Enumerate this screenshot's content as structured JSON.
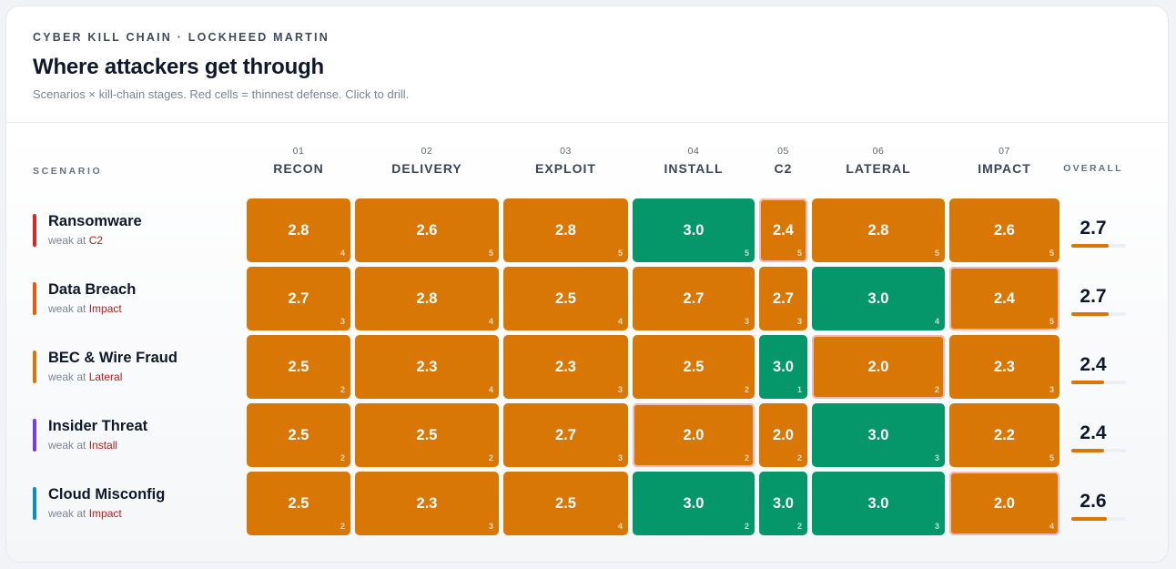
{
  "header": {
    "eyebrow": "CYBER KILL CHAIN · LOCKHEED MARTIN",
    "title": "Where attackers get through",
    "subtitle": "Scenarios × kill-chain stages. Red cells = thinnest defense. Click to drill."
  },
  "labels": {
    "scenario_head": "SCENARIO",
    "overall_head": "OVERALL",
    "weak_prefix": "weak at"
  },
  "colors": {
    "orange": "#d97706",
    "green": "#059669",
    "weak_outline": "#f3b9b9",
    "weak_text": "#b91c1c"
  },
  "chart_data": {
    "type": "heatmap",
    "title": "Where attackers get through",
    "scale_max": 4,
    "columns": [
      {
        "num": "01",
        "label": "RECON"
      },
      {
        "num": "02",
        "label": "DELIVERY"
      },
      {
        "num": "03",
        "label": "EXPLOIT"
      },
      {
        "num": "04",
        "label": "INSTALL"
      },
      {
        "num": "05",
        "label": "C2"
      },
      {
        "num": "06",
        "label": "LATERAL"
      },
      {
        "num": "07",
        "label": "IMPACT"
      }
    ],
    "rows": [
      {
        "name": "Ransomware",
        "bar_color": "#dc2626",
        "weak_stage": "C2",
        "overall": "2.7",
        "overall_fraction": 0.675,
        "cells": [
          {
            "v": "2.8",
            "n": "4",
            "c": "orange",
            "w": false
          },
          {
            "v": "2.6",
            "n": "5",
            "c": "orange",
            "w": false
          },
          {
            "v": "2.8",
            "n": "5",
            "c": "orange",
            "w": false
          },
          {
            "v": "3.0",
            "n": "5",
            "c": "green",
            "w": false
          },
          {
            "v": "2.4",
            "n": "5",
            "c": "orange",
            "w": true
          },
          {
            "v": "2.8",
            "n": "5",
            "c": "orange",
            "w": false
          },
          {
            "v": "2.6",
            "n": "5",
            "c": "orange",
            "w": false
          }
        ]
      },
      {
        "name": "Data Breach",
        "bar_color": "#ea580c",
        "weak_stage": "Impact",
        "overall": "2.7",
        "overall_fraction": 0.675,
        "cells": [
          {
            "v": "2.7",
            "n": "3",
            "c": "orange",
            "w": false
          },
          {
            "v": "2.8",
            "n": "4",
            "c": "orange",
            "w": false
          },
          {
            "v": "2.5",
            "n": "4",
            "c": "orange",
            "w": false
          },
          {
            "v": "2.7",
            "n": "3",
            "c": "orange",
            "w": false
          },
          {
            "v": "2.7",
            "n": "3",
            "c": "orange",
            "w": false
          },
          {
            "v": "3.0",
            "n": "4",
            "c": "green",
            "w": false
          },
          {
            "v": "2.4",
            "n": "5",
            "c": "orange",
            "w": true
          }
        ]
      },
      {
        "name": "BEC & Wire Fraud",
        "bar_color": "#d97706",
        "weak_stage": "Lateral",
        "overall": "2.4",
        "overall_fraction": 0.6,
        "cells": [
          {
            "v": "2.5",
            "n": "2",
            "c": "orange",
            "w": false
          },
          {
            "v": "2.3",
            "n": "4",
            "c": "orange",
            "w": false
          },
          {
            "v": "2.3",
            "n": "3",
            "c": "orange",
            "w": false
          },
          {
            "v": "2.5",
            "n": "2",
            "c": "orange",
            "w": false
          },
          {
            "v": "3.0",
            "n": "1",
            "c": "green",
            "w": false
          },
          {
            "v": "2.0",
            "n": "2",
            "c": "orange",
            "w": true
          },
          {
            "v": "2.3",
            "n": "3",
            "c": "orange",
            "w": false
          }
        ]
      },
      {
        "name": "Insider Threat",
        "bar_color": "#7c3aed",
        "weak_stage": "Install",
        "overall": "2.4",
        "overall_fraction": 0.6,
        "cells": [
          {
            "v": "2.5",
            "n": "2",
            "c": "orange",
            "w": false
          },
          {
            "v": "2.5",
            "n": "2",
            "c": "orange",
            "w": false
          },
          {
            "v": "2.7",
            "n": "3",
            "c": "orange",
            "w": false
          },
          {
            "v": "2.0",
            "n": "2",
            "c": "orange",
            "w": true
          },
          {
            "v": "2.0",
            "n": "2",
            "c": "orange",
            "w": false
          },
          {
            "v": "3.0",
            "n": "3",
            "c": "green",
            "w": false
          },
          {
            "v": "2.2",
            "n": "5",
            "c": "orange",
            "w": false
          }
        ]
      },
      {
        "name": "Cloud Misconfig",
        "bar_color": "#0891b2",
        "weak_stage": "Impact",
        "overall": "2.6",
        "overall_fraction": 0.65,
        "cells": [
          {
            "v": "2.5",
            "n": "2",
            "c": "orange",
            "w": false
          },
          {
            "v": "2.3",
            "n": "3",
            "c": "orange",
            "w": false
          },
          {
            "v": "2.5",
            "n": "4",
            "c": "orange",
            "w": false
          },
          {
            "v": "3.0",
            "n": "2",
            "c": "green",
            "w": false
          },
          {
            "v": "3.0",
            "n": "2",
            "c": "green",
            "w": false
          },
          {
            "v": "3.0",
            "n": "3",
            "c": "green",
            "w": false
          },
          {
            "v": "2.0",
            "n": "4",
            "c": "orange",
            "w": true
          }
        ]
      }
    ]
  }
}
